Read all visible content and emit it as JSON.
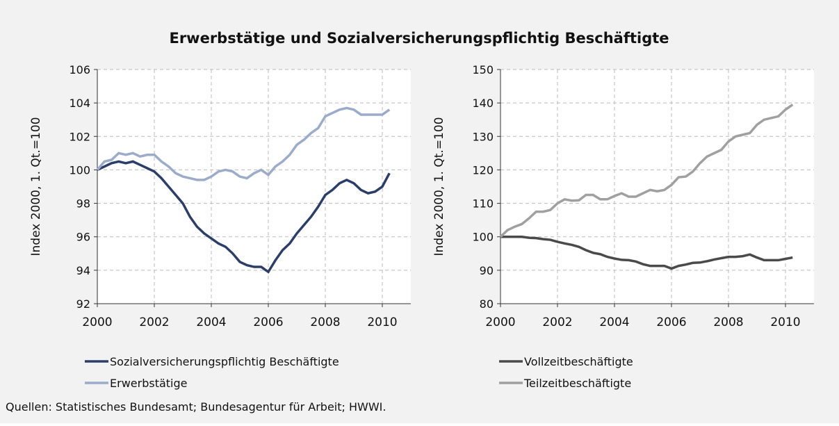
{
  "title": "Erwerbstätige und Sozialversicherungspflichtig Beschäftigte",
  "source": "Quellen: Statistisches Bundesamt; Bundesagentur für Arbeit; HWWI.",
  "chart_data": [
    {
      "type": "line",
      "ylabel": "Index 2000, 1. Qt.=100",
      "x": [
        2000,
        2000.25,
        2000.5,
        2000.75,
        2001,
        2001.25,
        2001.5,
        2001.75,
        2002,
        2002.25,
        2002.5,
        2002.75,
        2003,
        2003.25,
        2003.5,
        2003.75,
        2004,
        2004.25,
        2004.5,
        2004.75,
        2005,
        2005.25,
        2005.5,
        2005.75,
        2006,
        2006.25,
        2006.5,
        2006.75,
        2007,
        2007.25,
        2007.5,
        2007.75,
        2008,
        2008.25,
        2008.5,
        2008.75,
        2009,
        2009.25,
        2009.5,
        2009.75,
        2010,
        2010.25
      ],
      "xlim": [
        2000,
        2011
      ],
      "xticks": [
        2000,
        2002,
        2004,
        2006,
        2008,
        2010
      ],
      "ylim": [
        92,
        106
      ],
      "yticks": [
        92,
        94,
        96,
        98,
        100,
        102,
        104,
        106
      ],
      "grid": true,
      "series": [
        {
          "name": "Sozialversicherungspflichtig Beschäftigte",
          "color": "#2b3e6b",
          "values": [
            100,
            100.2,
            100.4,
            100.5,
            100.4,
            100.5,
            100.3,
            100.1,
            99.9,
            99.5,
            99.0,
            98.5,
            98.0,
            97.2,
            96.6,
            96.2,
            95.9,
            95.6,
            95.4,
            95.0,
            94.5,
            94.3,
            94.2,
            94.2,
            93.9,
            94.6,
            95.2,
            95.6,
            96.2,
            96.7,
            97.2,
            97.8,
            98.5,
            98.8,
            99.2,
            99.4,
            99.2,
            98.8,
            98.6,
            98.7,
            99.0,
            99.8
          ]
        },
        {
          "name": "Erwerbstätige",
          "color": "#9aabcc",
          "values": [
            100,
            100.5,
            100.6,
            101.0,
            100.9,
            101.0,
            100.8,
            100.9,
            100.9,
            100.5,
            100.2,
            99.8,
            99.6,
            99.5,
            99.4,
            99.4,
            99.6,
            99.9,
            100.0,
            99.9,
            99.6,
            99.5,
            99.8,
            100.0,
            99.7,
            100.2,
            100.5,
            100.9,
            101.5,
            101.8,
            102.2,
            102.5,
            103.2,
            103.4,
            103.6,
            103.7,
            103.6,
            103.3,
            103.3,
            103.3,
            103.3,
            103.6
          ]
        }
      ]
    },
    {
      "type": "line",
      "ylabel": "Index 2000, 1. Qt.=100",
      "x": [
        2000,
        2000.25,
        2000.5,
        2000.75,
        2001,
        2001.25,
        2001.5,
        2001.75,
        2002,
        2002.25,
        2002.5,
        2002.75,
        2003,
        2003.25,
        2003.5,
        2003.75,
        2004,
        2004.25,
        2004.5,
        2004.75,
        2005,
        2005.25,
        2005.5,
        2005.75,
        2006,
        2006.25,
        2006.5,
        2006.75,
        2007,
        2007.25,
        2007.5,
        2007.75,
        2008,
        2008.25,
        2008.5,
        2008.75,
        2009,
        2009.25,
        2009.5,
        2009.75,
        2010,
        2010.25
      ],
      "xlim": [
        2000,
        2011
      ],
      "xticks": [
        2000,
        2002,
        2004,
        2006,
        2008,
        2010
      ],
      "ylim": [
        80,
        150
      ],
      "yticks": [
        80,
        90,
        100,
        110,
        120,
        130,
        140,
        150
      ],
      "grid": true,
      "series": [
        {
          "name": "Vollzeitbeschäftigte",
          "color": "#4a4a4a",
          "values": [
            100,
            100,
            100,
            100,
            99.7,
            99.6,
            99.3,
            99.1,
            98.5,
            98,
            97.6,
            97,
            96,
            95.2,
            94.8,
            94,
            93.5,
            93.1,
            93,
            92.6,
            91.8,
            91.3,
            91.3,
            91.3,
            90.5,
            91.3,
            91.7,
            92.2,
            92.3,
            92.7,
            93.2,
            93.6,
            94,
            94,
            94.2,
            94.7,
            93.8,
            93,
            93,
            93,
            93.4,
            93.8
          ]
        },
        {
          "name": "Teilzeitbeschäftigte",
          "color": "#a0a0a0",
          "values": [
            100,
            102,
            103,
            103.8,
            105.5,
            107.5,
            107.5,
            108,
            110,
            111.2,
            110.8,
            110.9,
            112.5,
            112.5,
            111.2,
            111.2,
            112.2,
            113,
            112,
            112,
            113,
            114,
            113.6,
            114,
            115.5,
            117.8,
            118,
            119.5,
            122,
            124,
            125,
            126,
            128.5,
            130,
            130.5,
            131,
            133.5,
            135,
            135.5,
            136,
            138,
            139.5
          ]
        }
      ]
    }
  ]
}
